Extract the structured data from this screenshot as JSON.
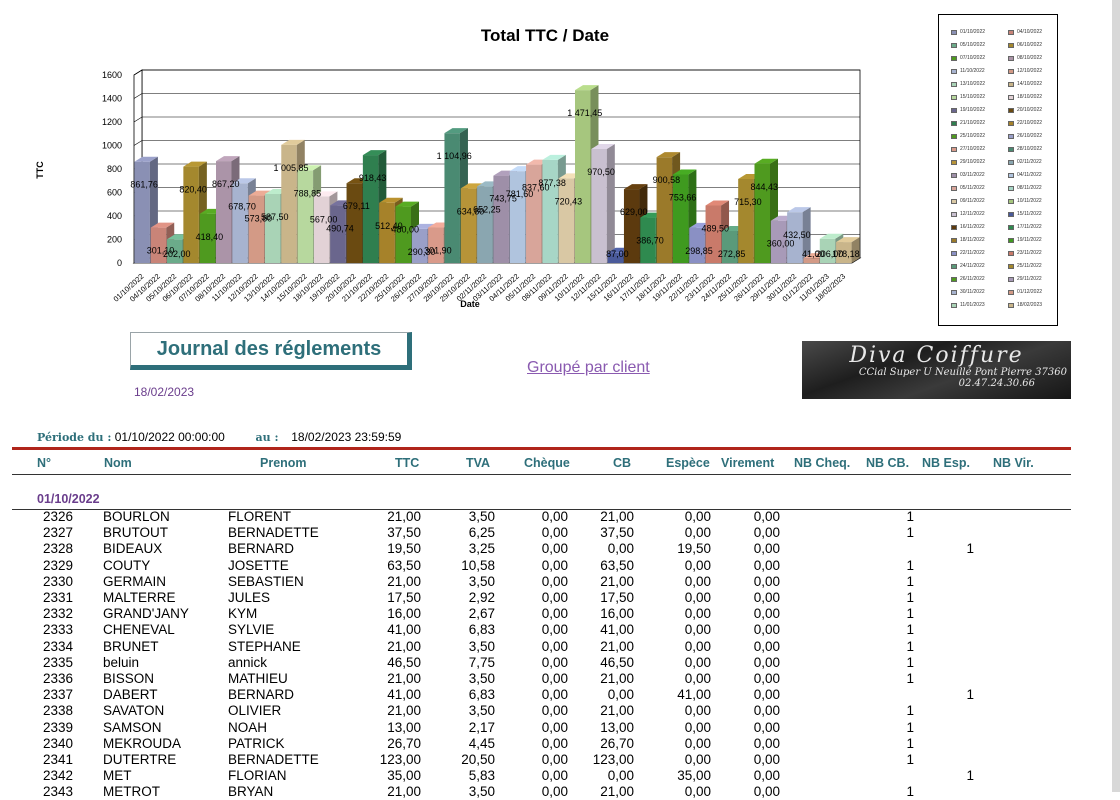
{
  "chart_data": {
    "type": "bar",
    "title": "Total TTC / Date",
    "xlabel": "Date",
    "ylabel": "TTC",
    "ylim": [
      0,
      1600
    ],
    "yticks": [
      0,
      200,
      400,
      600,
      800,
      1000,
      1200,
      1400,
      1600
    ],
    "grid": true,
    "legend_position": "right",
    "categories": [
      "01/10/2022",
      "04/10/2022",
      "05/10/2022",
      "06/10/2022",
      "07/10/2022",
      "08/10/2022",
      "11/10/2022",
      "12/10/2022",
      "13/10/2022",
      "14/10/2022",
      "15/10/2022",
      "18/10/2022",
      "19/10/2022",
      "20/10/2022",
      "21/10/2022",
      "22/10/2022",
      "25/10/2022",
      "26/10/2022",
      "27/10/2022",
      "28/10/2022",
      "29/10/2022",
      "02/11/2022",
      "03/11/2022",
      "04/11/2022",
      "05/11/2022",
      "08/11/2022",
      "09/11/2022",
      "10/11/2022",
      "12/11/2022",
      "15/11/2022",
      "16/11/2022",
      "17/11/2022",
      "18/11/2022",
      "19/11/2022",
      "22/11/2022",
      "23/11/2022",
      "24/11/2022",
      "25/11/2022",
      "26/11/2022",
      "29/11/2022",
      "30/11/2022",
      "01/12/2022",
      "11/01/2023",
      "18/02/2023"
    ],
    "values": [
      861.76,
      301.1,
      202.0,
      820.4,
      418.4,
      867.2,
      678.7,
      573.8,
      587.5,
      1005.85,
      788.85,
      567.0,
      490.74,
      679.11,
      918.43,
      512.4,
      480.0,
      290.3,
      301.9,
      1104.96,
      634.8,
      652.25,
      743.75,
      781.6,
      837.6,
      877.38,
      720.43,
      1471.45,
      970.5,
      87.0,
      629.0,
      386.7,
      900.58,
      753.66,
      298.85,
      489.5,
      272.85,
      715.3,
      844.43,
      360.0,
      432.5,
      41.0,
      206.0,
      178.18
    ],
    "value_labels": [
      "861,76",
      "301,10",
      "202,00",
      "820,40",
      "418,40",
      "867,20",
      "678,70",
      "573,80",
      "587,50",
      "1 005,85",
      "788,85",
      "567,00",
      "490,74",
      "679,11",
      "918,43",
      "512,40",
      "480,00",
      "290,30",
      "301,90",
      "1 104,96",
      "634,80",
      "652,25",
      "743,75",
      "781,60",
      "837,60",
      "877,38",
      "720,43",
      "1 471,45",
      "970,50",
      "87,00",
      "629,00",
      "386,70",
      "900,58",
      "753,66",
      "298,85",
      "489,50",
      "272,85",
      "715,30",
      "844,43",
      "360,00",
      "432,50",
      "41,00",
      "206,00",
      "178,18"
    ],
    "colors": [
      "#8a90b4",
      "#c98478",
      "#6bab8a",
      "#a4882e",
      "#4f9a1f",
      "#ab94a8",
      "#a7b3cf",
      "#d39a86",
      "#a9d3b6",
      "#c9b58a",
      "#b7d89e",
      "#e2d2d6",
      "#6a668d",
      "#6a4a11",
      "#2f7f4f",
      "#a6822a",
      "#4f9a1f",
      "#9a9fc8",
      "#d99a8a",
      "#4a8a72",
      "#b79438",
      "#8aa6b0",
      "#9e8fa8",
      "#b0c4de",
      "#d8a59a",
      "#a7d6c6",
      "#d9c8a4",
      "#a6c67e",
      "#c9c0d0",
      "#4a5a9a",
      "#5c3a0e",
      "#2f8a4f",
      "#9b7a2a",
      "#3f9a1f",
      "#8a90c4",
      "#c97a6a",
      "#5a9a7a",
      "#a4882e",
      "#4f9a1f",
      "#a89ab8",
      "#a7b3cf",
      "#d39a86",
      "#a9d3b6",
      "#c9b58a"
    ]
  },
  "legend": {
    "items": [
      "01/10/2022",
      "04/10/2022",
      "05/10/2022",
      "06/10/2022",
      "07/10/2022",
      "08/10/2022",
      "11/10/2022",
      "12/10/2022",
      "13/10/2022",
      "14/10/2022",
      "15/10/2022",
      "18/10/2022",
      "19/10/2022",
      "20/10/2022",
      "21/10/2022",
      "22/10/2022",
      "25/10/2022",
      "26/10/2022",
      "27/10/2022",
      "28/10/2022",
      "29/10/2022",
      "02/11/2022",
      "03/11/2022",
      "04/11/2022",
      "05/11/2022",
      "08/11/2022",
      "09/11/2022",
      "10/11/2022",
      "12/11/2022",
      "15/11/2022",
      "16/11/2022",
      "17/11/2022",
      "18/11/2022",
      "19/11/2022",
      "22/11/2022",
      "23/11/2022",
      "24/11/2022",
      "25/11/2022",
      "26/11/2022",
      "29/11/2022",
      "30/11/2022",
      "01/12/2022",
      "11/01/2023",
      "18/02/2023"
    ]
  },
  "report": {
    "title": "Journal des réglements",
    "date": "18/02/2023",
    "group_link": "Groupé par client",
    "logo_name": "Diva Coiffure",
    "logo_address": "CCial Super U Neuillé Pont Pierre  37360",
    "logo_phone": "02.47.24.30.66",
    "period_from_label": "Période du :",
    "period_from": "01/10/2022 00:00:00",
    "period_to_label": "au :",
    "period_to": "18/02/2023 23:59:59",
    "columns": [
      "N°",
      "Nom",
      "Prenom",
      "TTC",
      "TVA",
      "Chèque",
      "CB",
      "Espèce",
      "Virement",
      "NB Cheq.",
      "NB CB.",
      "NB Esp.",
      "NB Vir."
    ],
    "group_date": "01/10/2022"
  },
  "rows": [
    {
      "n": "2326",
      "nom": "BOURLON",
      "prenom": "FLORENT",
      "ttc": "21,00",
      "tva": "3,50",
      "cheque": "0,00",
      "cb": "21,00",
      "espece": "0,00",
      "virement": "0,00",
      "nb_cheq": "",
      "nb_cb": "1",
      "nb_esp": "",
      "nb_vir": ""
    },
    {
      "n": "2327",
      "nom": "BRUTOUT",
      "prenom": "BERNADETTE",
      "ttc": "37,50",
      "tva": "6,25",
      "cheque": "0,00",
      "cb": "37,50",
      "espece": "0,00",
      "virement": "0,00",
      "nb_cheq": "",
      "nb_cb": "1",
      "nb_esp": "",
      "nb_vir": ""
    },
    {
      "n": "2328",
      "nom": "BIDEAUX",
      "prenom": "BERNARD",
      "ttc": "19,50",
      "tva": "3,25",
      "cheque": "0,00",
      "cb": "0,00",
      "espece": "19,50",
      "virement": "0,00",
      "nb_cheq": "",
      "nb_cb": "",
      "nb_esp": "1",
      "nb_vir": ""
    },
    {
      "n": "2329",
      "nom": "COUTY",
      "prenom": "JOSETTE",
      "ttc": "63,50",
      "tva": "10,58",
      "cheque": "0,00",
      "cb": "63,50",
      "espece": "0,00",
      "virement": "0,00",
      "nb_cheq": "",
      "nb_cb": "1",
      "nb_esp": "",
      "nb_vir": ""
    },
    {
      "n": "2330",
      "nom": "GERMAIN",
      "prenom": "SEBASTIEN",
      "ttc": "21,00",
      "tva": "3,50",
      "cheque": "0,00",
      "cb": "21,00",
      "espece": "0,00",
      "virement": "0,00",
      "nb_cheq": "",
      "nb_cb": "1",
      "nb_esp": "",
      "nb_vir": ""
    },
    {
      "n": "2331",
      "nom": "MALTERRE",
      "prenom": "JULES",
      "ttc": "17,50",
      "tva": "2,92",
      "cheque": "0,00",
      "cb": "17,50",
      "espece": "0,00",
      "virement": "0,00",
      "nb_cheq": "",
      "nb_cb": "1",
      "nb_esp": "",
      "nb_vir": ""
    },
    {
      "n": "2332",
      "nom": "GRAND'JANY",
      "prenom": "KYM",
      "ttc": "16,00",
      "tva": "2,67",
      "cheque": "0,00",
      "cb": "16,00",
      "espece": "0,00",
      "virement": "0,00",
      "nb_cheq": "",
      "nb_cb": "1",
      "nb_esp": "",
      "nb_vir": ""
    },
    {
      "n": "2333",
      "nom": "CHENEVAL",
      "prenom": "SYLVIE",
      "ttc": "41,00",
      "tva": "6,83",
      "cheque": "0,00",
      "cb": "41,00",
      "espece": "0,00",
      "virement": "0,00",
      "nb_cheq": "",
      "nb_cb": "1",
      "nb_esp": "",
      "nb_vir": ""
    },
    {
      "n": "2334",
      "nom": "BRUNET",
      "prenom": "STEPHANE",
      "ttc": "21,00",
      "tva": "3,50",
      "cheque": "0,00",
      "cb": "21,00",
      "espece": "0,00",
      "virement": "0,00",
      "nb_cheq": "",
      "nb_cb": "1",
      "nb_esp": "",
      "nb_vir": ""
    },
    {
      "n": "2335",
      "nom": "beluin",
      "prenom": "annick",
      "ttc": "46,50",
      "tva": "7,75",
      "cheque": "0,00",
      "cb": "46,50",
      "espece": "0,00",
      "virement": "0,00",
      "nb_cheq": "",
      "nb_cb": "1",
      "nb_esp": "",
      "nb_vir": ""
    },
    {
      "n": "2336",
      "nom": "BISSON",
      "prenom": "MATHIEU",
      "ttc": "21,00",
      "tva": "3,50",
      "cheque": "0,00",
      "cb": "21,00",
      "espece": "0,00",
      "virement": "0,00",
      "nb_cheq": "",
      "nb_cb": "1",
      "nb_esp": "",
      "nb_vir": ""
    },
    {
      "n": "2337",
      "nom": "DABERT",
      "prenom": "BERNARD",
      "ttc": "41,00",
      "tva": "6,83",
      "cheque": "0,00",
      "cb": "0,00",
      "espece": "41,00",
      "virement": "0,00",
      "nb_cheq": "",
      "nb_cb": "",
      "nb_esp": "1",
      "nb_vir": ""
    },
    {
      "n": "2338",
      "nom": "SAVATON",
      "prenom": "OLIVIER",
      "ttc": "21,00",
      "tva": "3,50",
      "cheque": "0,00",
      "cb": "21,00",
      "espece": "0,00",
      "virement": "0,00",
      "nb_cheq": "",
      "nb_cb": "1",
      "nb_esp": "",
      "nb_vir": ""
    },
    {
      "n": "2339",
      "nom": "SAMSON",
      "prenom": "NOAH",
      "ttc": "13,00",
      "tva": "2,17",
      "cheque": "0,00",
      "cb": "13,00",
      "espece": "0,00",
      "virement": "0,00",
      "nb_cheq": "",
      "nb_cb": "1",
      "nb_esp": "",
      "nb_vir": ""
    },
    {
      "n": "2340",
      "nom": "MEKROUDA",
      "prenom": "PATRICK",
      "ttc": "26,70",
      "tva": "4,45",
      "cheque": "0,00",
      "cb": "26,70",
      "espece": "0,00",
      "virement": "0,00",
      "nb_cheq": "",
      "nb_cb": "1",
      "nb_esp": "",
      "nb_vir": ""
    },
    {
      "n": "2341",
      "nom": "DUTERTRE",
      "prenom": "BERNADETTE",
      "ttc": "123,00",
      "tva": "20,50",
      "cheque": "0,00",
      "cb": "123,00",
      "espece": "0,00",
      "virement": "0,00",
      "nb_cheq": "",
      "nb_cb": "1",
      "nb_esp": "",
      "nb_vir": ""
    },
    {
      "n": "2342",
      "nom": "MET",
      "prenom": "FLORIAN",
      "ttc": "35,00",
      "tva": "5,83",
      "cheque": "0,00",
      "cb": "0,00",
      "espece": "35,00",
      "virement": "0,00",
      "nb_cheq": "",
      "nb_cb": "",
      "nb_esp": "1",
      "nb_vir": ""
    },
    {
      "n": "2343",
      "nom": "METROT",
      "prenom": "BRYAN",
      "ttc": "21,00",
      "tva": "3,50",
      "cheque": "0,00",
      "cb": "21,00",
      "espece": "0,00",
      "virement": "0,00",
      "nb_cheq": "",
      "nb_cb": "1",
      "nb_esp": "",
      "nb_vir": ""
    }
  ]
}
